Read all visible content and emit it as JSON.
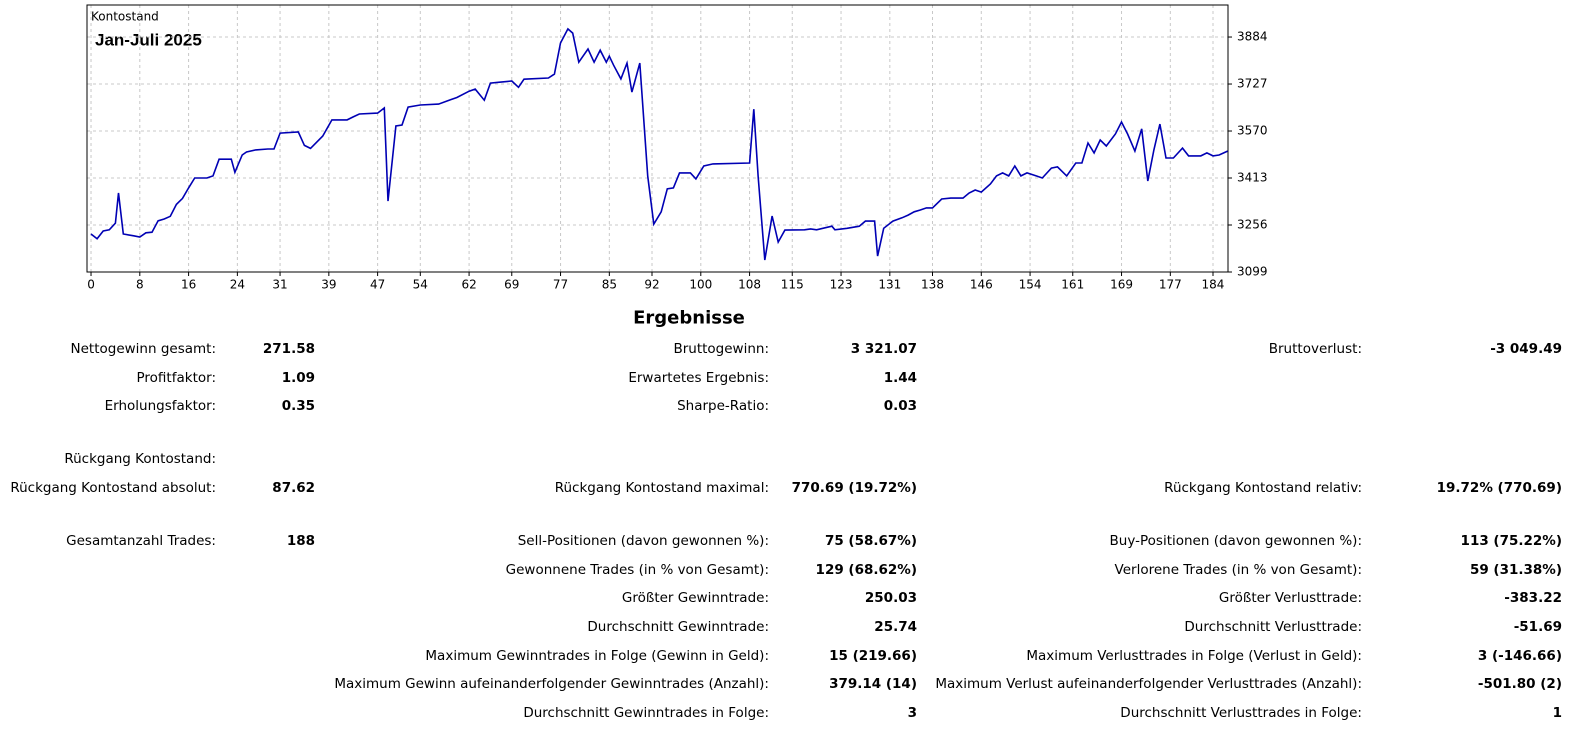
{
  "chart_data": {
    "type": "line",
    "title": "Jan-Juli 2025",
    "x": [
      0,
      1,
      2,
      3,
      4,
      4.5,
      5.3,
      7,
      8,
      9,
      10,
      11,
      12,
      13,
      14,
      15,
      16,
      17,
      19,
      20,
      21,
      23,
      23.6,
      24.8,
      25.5,
      27,
      29,
      30,
      31,
      34,
      35,
      36,
      38,
      39.5,
      42,
      43,
      44,
      47,
      48.1,
      48.7,
      50,
      51,
      52,
      54,
      57,
      59,
      60,
      62,
      63,
      64.5,
      65.5,
      67,
      69,
      70.1,
      71,
      75,
      76,
      77,
      78.2,
      79,
      80,
      81.5,
      82.5,
      83.5,
      84.5,
      85,
      85.7,
      86.9,
      87.9,
      88.7,
      90,
      91.3,
      92.3,
      93.5,
      94.5,
      95.5,
      96.5,
      98.3,
      99.2,
      100.5,
      102,
      108,
      108.7,
      109.4,
      110.5,
      111.7,
      112.7,
      113.8,
      117,
      118,
      119,
      121.5,
      122,
      124,
      126,
      127,
      128.5,
      129,
      130,
      131.5,
      133,
      134,
      135,
      136,
      137,
      138,
      139.5,
      141,
      143,
      144,
      145,
      146,
      147.5,
      148.5,
      149.5,
      150.5,
      151.5,
      152.5,
      153.5,
      155,
      156,
      157.5,
      158.5,
      160,
      161.5,
      162.5,
      163.5,
      164.5,
      165.5,
      166.5,
      168,
      169,
      170,
      171.2,
      172.3,
      173.3,
      174.3,
      175.3,
      176.3,
      177.5,
      179,
      180,
      182,
      183,
      184,
      185,
      186.4
    ],
    "series": [
      {
        "name": "Kontostand",
        "color": "#0000b4",
        "values": [
          3226,
          3210,
          3236,
          3240,
          3262,
          3363,
          3226,
          3220,
          3216,
          3230,
          3232,
          3270,
          3276,
          3285,
          3325,
          3345,
          3380,
          3413,
          3413,
          3420,
          3476,
          3476,
          3432,
          3490,
          3500,
          3507,
          3510,
          3510,
          3563,
          3567,
          3522,
          3512,
          3553,
          3607,
          3607,
          3617,
          3627,
          3630,
          3647,
          3336,
          3587,
          3590,
          3650,
          3657,
          3660,
          3675,
          3682,
          3703,
          3710,
          3673,
          3730,
          3733,
          3737,
          3716,
          3743,
          3747,
          3760,
          3864,
          3911,
          3897,
          3800,
          3844,
          3800,
          3840,
          3800,
          3820,
          3790,
          3744,
          3797,
          3700,
          3797,
          3420,
          3259,
          3300,
          3377,
          3380,
          3430,
          3430,
          3410,
          3453,
          3460,
          3463,
          3643,
          3420,
          3139,
          3286,
          3199,
          3239,
          3240,
          3243,
          3240,
          3252,
          3240,
          3245,
          3252,
          3269,
          3269,
          3152,
          3245,
          3269,
          3280,
          3289,
          3300,
          3306,
          3313,
          3313,
          3343,
          3346,
          3346,
          3363,
          3373,
          3366,
          3393,
          3420,
          3430,
          3420,
          3453,
          3420,
          3430,
          3420,
          3413,
          3446,
          3450,
          3420,
          3463,
          3463,
          3530,
          3497,
          3540,
          3520,
          3560,
          3600,
          3560,
          3503,
          3577,
          3403,
          3507,
          3593,
          3480,
          3480,
          3513,
          3487,
          3487,
          3497,
          3487,
          3490,
          3503
        ]
      }
    ],
    "xlim": [
      -0.66,
      186.46
    ],
    "ylim": [
      3099,
      3991
    ],
    "xticks": [
      0,
      8,
      16,
      24,
      31,
      39,
      47,
      54,
      62,
      69,
      77,
      85,
      92,
      100,
      108,
      115,
      123,
      131,
      138,
      146,
      154,
      161,
      169,
      177,
      184
    ],
    "yticks": [
      3099,
      3256,
      3413,
      3570,
      3727,
      3884
    ],
    "grid": true
  },
  "results": {
    "title": "Ergebnisse",
    "rows": [
      [
        "Nettogewinn gesamt:",
        "271.58",
        "Bruttogewinn:",
        "3 321.07",
        "Bruttoverlust:",
        "-3 049.49"
      ],
      [
        "Profitfaktor:",
        "1.09",
        "Erwartetes Ergebnis:",
        "1.44",
        null,
        null
      ],
      [
        "Erholungsfaktor:",
        "0.35",
        "Sharpe-Ratio:",
        "0.03",
        null,
        null
      ],
      [
        "Rückgang Kontostand:",
        null,
        null,
        null,
        null,
        null
      ],
      [
        "Rückgang Kontostand absolut:",
        "87.62",
        "Rückgang Kontostand maximal:",
        "770.69 (19.72%)",
        "Rückgang Kontostand relativ:",
        "19.72% (770.69)"
      ],
      [
        "Gesamtanzahl Trades:",
        "188",
        "Sell-Positionen (davon gewonnen %):",
        "75 (58.67%)",
        "Buy-Positionen (davon gewonnen %):",
        "113 (75.22%)"
      ],
      [
        null,
        null,
        "Gewonnene Trades (in % von Gesamt):",
        "129 (68.62%)",
        "Verlorene Trades (in % von Gesamt):",
        "59 (31.38%)"
      ],
      [
        null,
        null,
        "Größter Gewinntrade:",
        "250.03",
        "Größter Verlusttrade:",
        "-383.22"
      ],
      [
        null,
        null,
        "Durchschnitt Gewinntrade:",
        "25.74",
        "Durchschnitt Verlusttrade:",
        "-51.69"
      ],
      [
        null,
        null,
        "Maximum Gewinntrades in Folge (Gewinn in Geld):",
        "15 (219.66)",
        "Maximum Verlusttrades in Folge (Verlust in Geld):",
        "3 (-146.66)"
      ],
      [
        null,
        null,
        "Maximum Gewinn aufeinanderfolgender Gewinntrades (Anzahl):",
        "379.14 (14)",
        "Maximum Verlust aufeinanderfolgender Verlusttrades (Anzahl):",
        "-501.80 (2)"
      ],
      [
        null,
        null,
        "Durchschnitt Gewinntrades in Folge:",
        "3",
        "Durchschnitt Verlusttrades in Folge:",
        "1"
      ]
    ]
  }
}
